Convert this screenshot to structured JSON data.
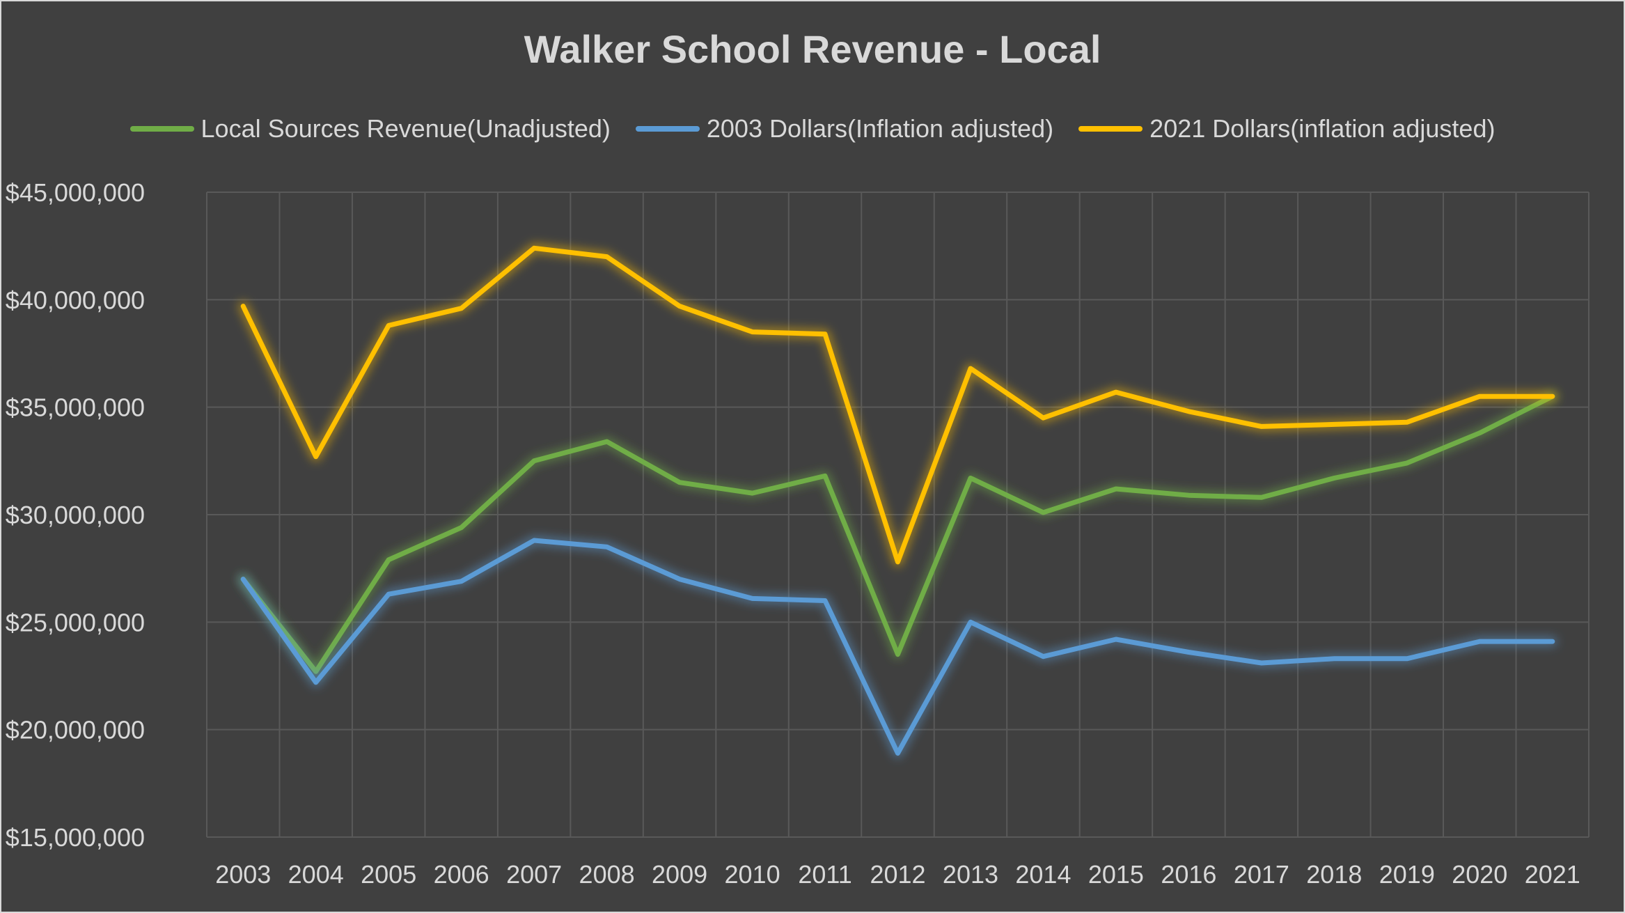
{
  "chart_data": {
    "type": "line",
    "title": "Walker School Revenue - Local",
    "xlabel": "",
    "ylabel": "",
    "x": [
      "2003",
      "2004",
      "2005",
      "2006",
      "2007",
      "2008",
      "2009",
      "2010",
      "2011",
      "2012",
      "2013",
      "2014",
      "2015",
      "2016",
      "2017",
      "2018",
      "2019",
      "2020",
      "2021"
    ],
    "ylim": [
      15000000,
      45000000
    ],
    "yticks": [
      15000000,
      20000000,
      25000000,
      30000000,
      35000000,
      40000000,
      45000000
    ],
    "ytick_labels": [
      "$15,000,000",
      "$20,000,000",
      "$25,000,000",
      "$30,000,000",
      "$35,000,000",
      "$40,000,000",
      "$45,000,000"
    ],
    "grid": true,
    "legend_position": "top",
    "series": [
      {
        "name": "Local Sources Revenue(Unadjusted)",
        "color": "#70ad47",
        "values": [
          27000000,
          22700000,
          27900000,
          29400000,
          32500000,
          33400000,
          31500000,
          31000000,
          31800000,
          23500000,
          31700000,
          30100000,
          31200000,
          30900000,
          30800000,
          31700000,
          32400000,
          33800000,
          35500000
        ]
      },
      {
        "name": "2003 Dollars(Inflation adjusted)",
        "color": "#5b9bd5",
        "values": [
          27000000,
          22200000,
          26300000,
          26900000,
          28800000,
          28500000,
          27000000,
          26100000,
          26000000,
          18900000,
          25000000,
          23400000,
          24200000,
          23600000,
          23100000,
          23300000,
          23300000,
          24100000,
          24100000
        ]
      },
      {
        "name": "2021 Dollars(inflation adjusted)",
        "color": "#ffc000",
        "values": [
          39700000,
          32700000,
          38800000,
          39600000,
          42400000,
          42000000,
          39700000,
          38500000,
          38400000,
          27800000,
          36800000,
          34500000,
          35700000,
          34800000,
          34100000,
          34200000,
          34300000,
          35500000,
          35500000
        ]
      }
    ]
  }
}
